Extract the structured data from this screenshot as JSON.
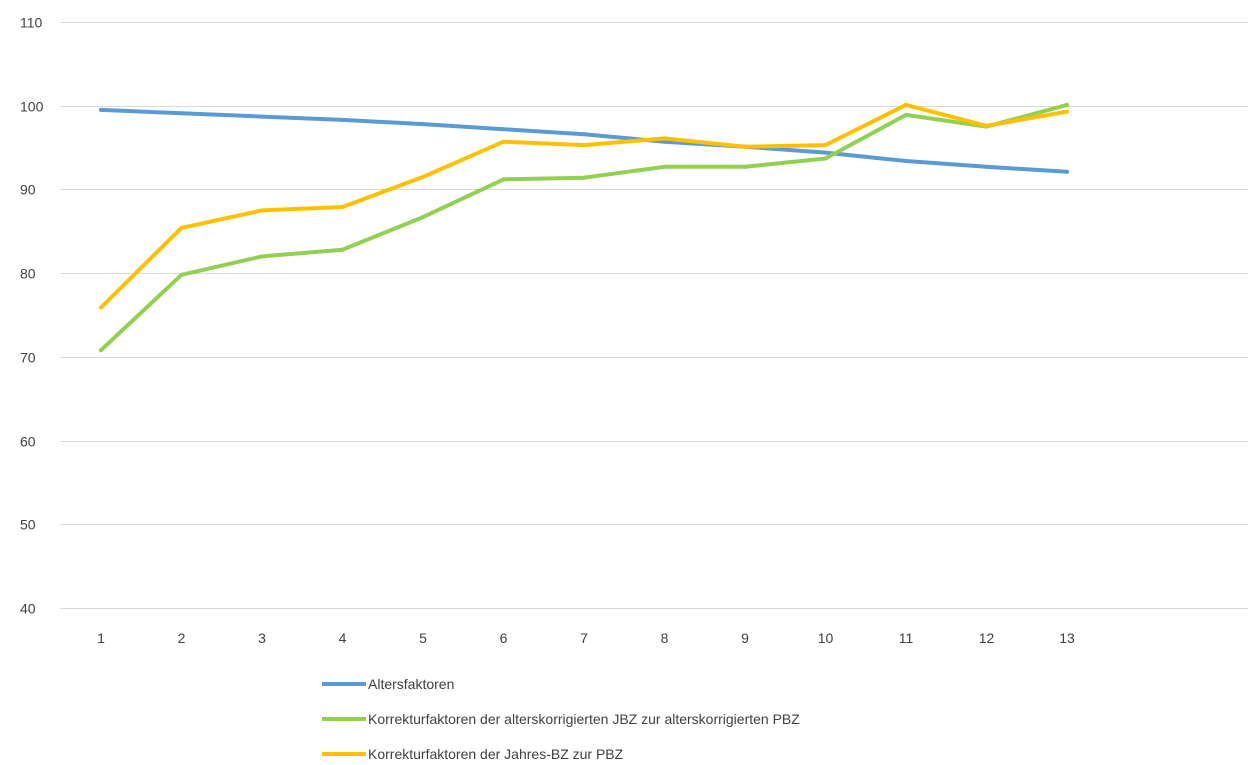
{
  "chart_data": {
    "type": "line",
    "title": "",
    "xlabel": "",
    "ylabel": "",
    "categories": [
      "1",
      "2",
      "3",
      "4",
      "5",
      "6",
      "7",
      "8",
      "9",
      "10",
      "11",
      "12",
      "13"
    ],
    "ylim": [
      40,
      110
    ],
    "yticks": [
      40,
      50,
      60,
      70,
      80,
      90,
      100,
      110
    ],
    "grid": true,
    "legend_position": "bottom",
    "series": [
      {
        "name": "Altersfaktoren",
        "color": "#5b9bd5",
        "values": [
          99.5,
          99.1,
          98.7,
          98.3,
          97.8,
          97.2,
          96.6,
          95.7,
          95.1,
          94.4,
          93.4,
          92.7,
          92.1
        ]
      },
      {
        "name": "Korrekturfaktoren der alterskorrigierten JBZ zur alterskorrigierten PBZ",
        "color": "#92d050",
        "values": [
          70.8,
          79.8,
          82.0,
          82.8,
          86.7,
          91.2,
          91.4,
          92.7,
          92.7,
          93.7,
          98.9,
          97.5,
          100.1
        ]
      },
      {
        "name": "Korrekturfaktoren der Jahres-BZ zur PBZ",
        "color": "#ffc000",
        "values": [
          75.9,
          85.4,
          87.5,
          87.9,
          91.5,
          95.7,
          95.3,
          96.1,
          95.1,
          95.3,
          100.1,
          97.6,
          99.3
        ]
      }
    ]
  }
}
